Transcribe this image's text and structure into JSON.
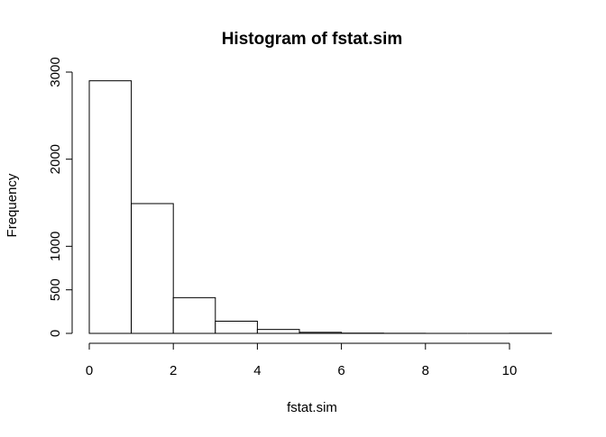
{
  "chart_data": {
    "type": "bar",
    "title": "Histogram of fstat.sim",
    "xlabel": "fstat.sim",
    "ylabel": "Frequency",
    "bins": [
      {
        "x0": 0,
        "x1": 1,
        "count": 2900
      },
      {
        "x0": 1,
        "x1": 2,
        "count": 1490
      },
      {
        "x0": 2,
        "x1": 3,
        "count": 410
      },
      {
        "x0": 3,
        "x1": 4,
        "count": 140
      },
      {
        "x0": 4,
        "x1": 5,
        "count": 45
      },
      {
        "x0": 5,
        "x1": 6,
        "count": 12
      },
      {
        "x0": 6,
        "x1": 7,
        "count": 3
      },
      {
        "x0": 7,
        "x1": 8,
        "count": 1
      },
      {
        "x0": 8,
        "x1": 9,
        "count": 0
      },
      {
        "x0": 9,
        "x1": 10,
        "count": 0
      },
      {
        "x0": 10,
        "x1": 11,
        "count": 1
      }
    ],
    "xlim": [
      0,
      11
    ],
    "ylim": [
      0,
      3000
    ],
    "xticks": [
      0,
      2,
      4,
      6,
      8,
      10
    ],
    "yticks": [
      0,
      500,
      1000,
      2000,
      3000
    ],
    "grid": false,
    "bar_fill": "#ffffff",
    "bar_stroke": "#000000"
  }
}
